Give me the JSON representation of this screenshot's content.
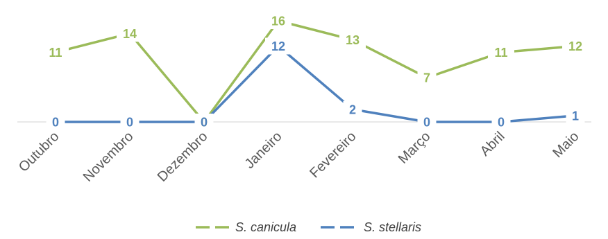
{
  "chart_data": {
    "type": "line",
    "categories": [
      "Outubro",
      "Novembro",
      "Dezembro",
      "Janeiro",
      "Fevereiro",
      "Março",
      "Abril",
      "Maio"
    ],
    "series": [
      {
        "name": "S. canicula",
        "values": [
          11,
          14,
          0,
          16,
          13,
          7,
          11,
          12
        ],
        "color": "#9BBB59"
      },
      {
        "name": "S. stellaris",
        "values": [
          0,
          0,
          0,
          12,
          2,
          0,
          0,
          1
        ],
        "color": "#4F81BD"
      }
    ],
    "title": "",
    "xlabel": "",
    "ylabel": "",
    "ylim": [
      0,
      16
    ],
    "grid": false,
    "legend_position": "bottom",
    "data_labels": true,
    "axis_color": "#D9D9D9"
  }
}
